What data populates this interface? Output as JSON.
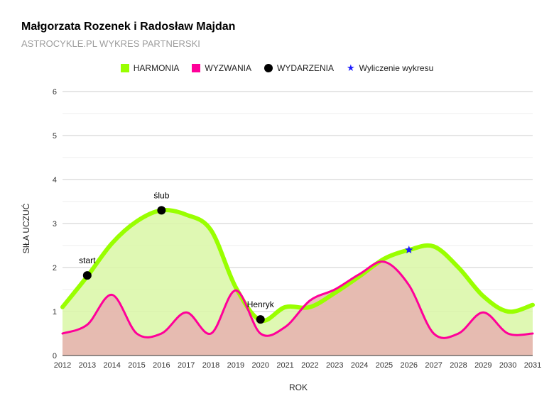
{
  "chart_data": {
    "type": "area",
    "title": "Małgorzata Rozenek i Radosław Majdan",
    "subtitle": "ASTROCYKLE.PL WYKRES PARTNERSKI",
    "xlabel": "ROK",
    "ylabel": "SIŁA UCZUĆ",
    "ylim": [
      0,
      6
    ],
    "yticks": [
      0,
      1,
      2,
      3,
      4,
      5,
      6
    ],
    "xlim": [
      2012,
      2031
    ],
    "xticks": [
      2012,
      2013,
      2014,
      2015,
      2016,
      2017,
      2018,
      2019,
      2020,
      2021,
      2022,
      2023,
      2024,
      2025,
      2026,
      2027,
      2028,
      2029,
      2030,
      2031
    ],
    "legend": [
      {
        "label": "HARMONIA",
        "marker": "square",
        "color": "#99ff00"
      },
      {
        "label": "WYZWANIA",
        "marker": "square",
        "color": "#ff0099"
      },
      {
        "label": "WYDARZENIA",
        "marker": "circle",
        "color": "#000000"
      },
      {
        "label": "Wyliczenie wykresu",
        "marker": "star",
        "color": "#1a1aff"
      }
    ],
    "series": [
      {
        "name": "HARMONIA",
        "color": "#99ff00",
        "fill": "#d9f7a6",
        "x": [
          2012,
          2013,
          2014,
          2015,
          2016,
          2017,
          2018,
          2019,
          2020,
          2021,
          2022,
          2023,
          2024,
          2025,
          2026,
          2027,
          2028,
          2029,
          2030,
          2031
        ],
        "values": [
          1.1,
          1.8,
          2.55,
          3.05,
          3.3,
          3.2,
          2.85,
          1.55,
          0.8,
          1.1,
          1.1,
          1.42,
          1.8,
          2.2,
          2.4,
          2.48,
          2.0,
          1.35,
          1.0,
          1.15
        ]
      },
      {
        "name": "WYZWANIA",
        "color": "#ff0099",
        "fill": "#e8b0b0",
        "x": [
          2012,
          2013,
          2014,
          2015,
          2016,
          2017,
          2018,
          2019,
          2020,
          2021,
          2022,
          2023,
          2024,
          2025,
          2026,
          2027,
          2028,
          2029,
          2030,
          2031
        ],
        "values": [
          0.5,
          0.7,
          1.38,
          0.5,
          0.5,
          0.98,
          0.5,
          1.48,
          0.5,
          0.65,
          1.25,
          1.5,
          1.85,
          2.13,
          1.6,
          0.5,
          0.5,
          0.98,
          0.5,
          0.5
        ]
      }
    ],
    "events": [
      {
        "label": "start",
        "x": 2013,
        "y": 1.82
      },
      {
        "label": "ślub",
        "x": 2016,
        "y": 3.3
      },
      {
        "label": "Henryk",
        "x": 2020,
        "y": 0.82
      }
    ],
    "calc_marker": {
      "label": "Wyliczenie wykresu",
      "x": 2026,
      "y": 2.4
    }
  }
}
